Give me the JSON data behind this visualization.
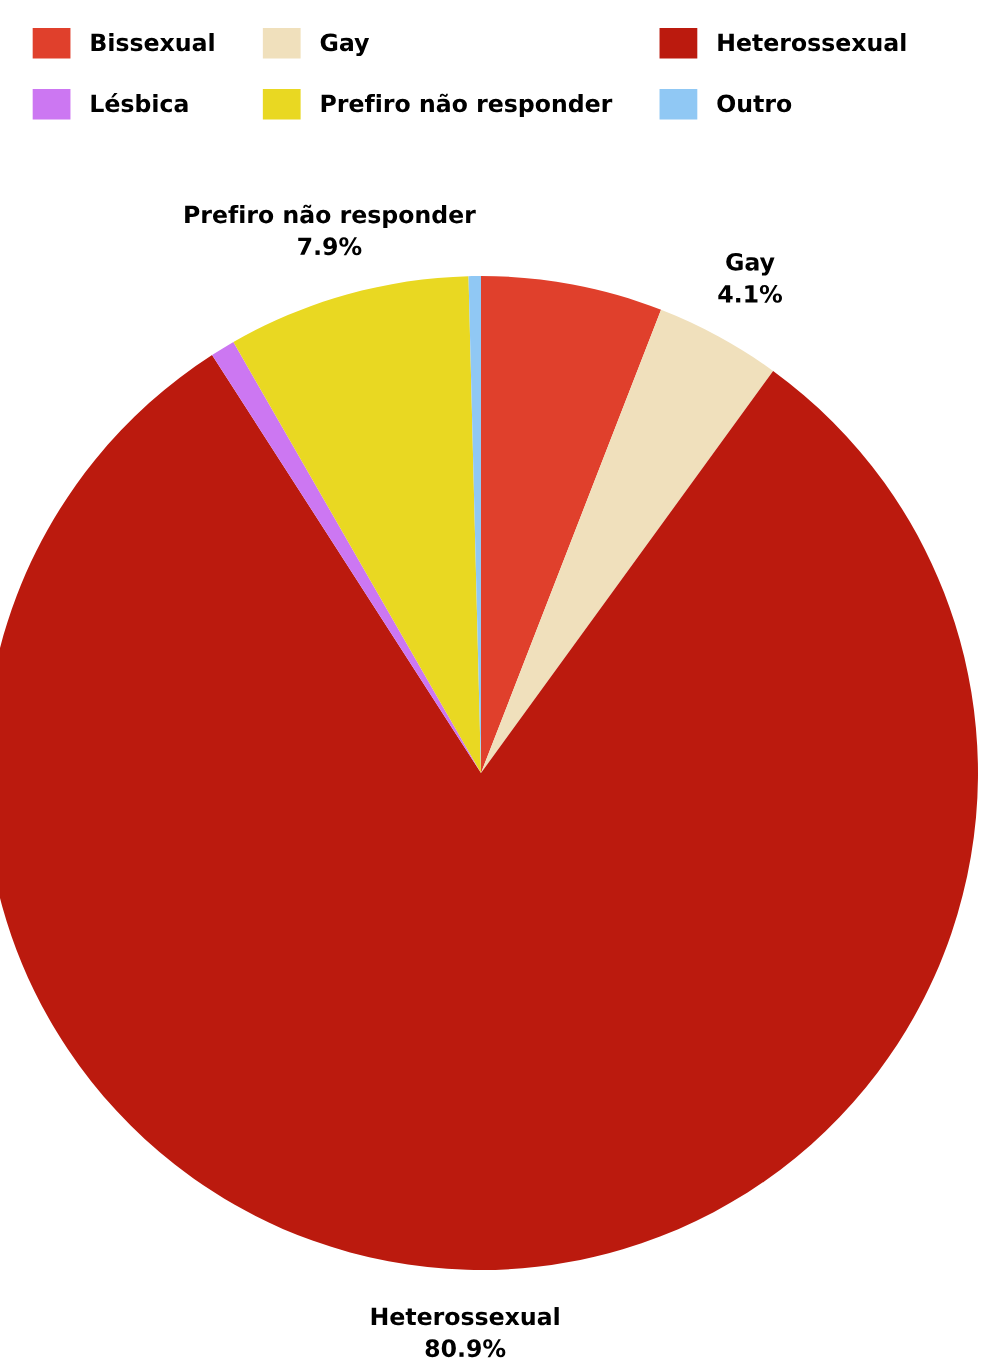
{
  "chart_data": {
    "type": "pie",
    "categories": [
      "Bissexual",
      "Gay",
      "Heterossexual",
      "Lésbica",
      "Prefiro não responder",
      "Outro"
    ],
    "values": [
      5.9,
      4.1,
      80.9,
      0.8,
      7.9,
      0.4
    ],
    "colors": [
      "#e0402c",
      "#f0e0bc",
      "#bb1a0e",
      "#cc77f2",
      "#e9d822",
      "#90c8f4"
    ],
    "value_labels": [
      null,
      "4.1%",
      "80.9%",
      null,
      "7.9%",
      null
    ],
    "legend": "top"
  }
}
